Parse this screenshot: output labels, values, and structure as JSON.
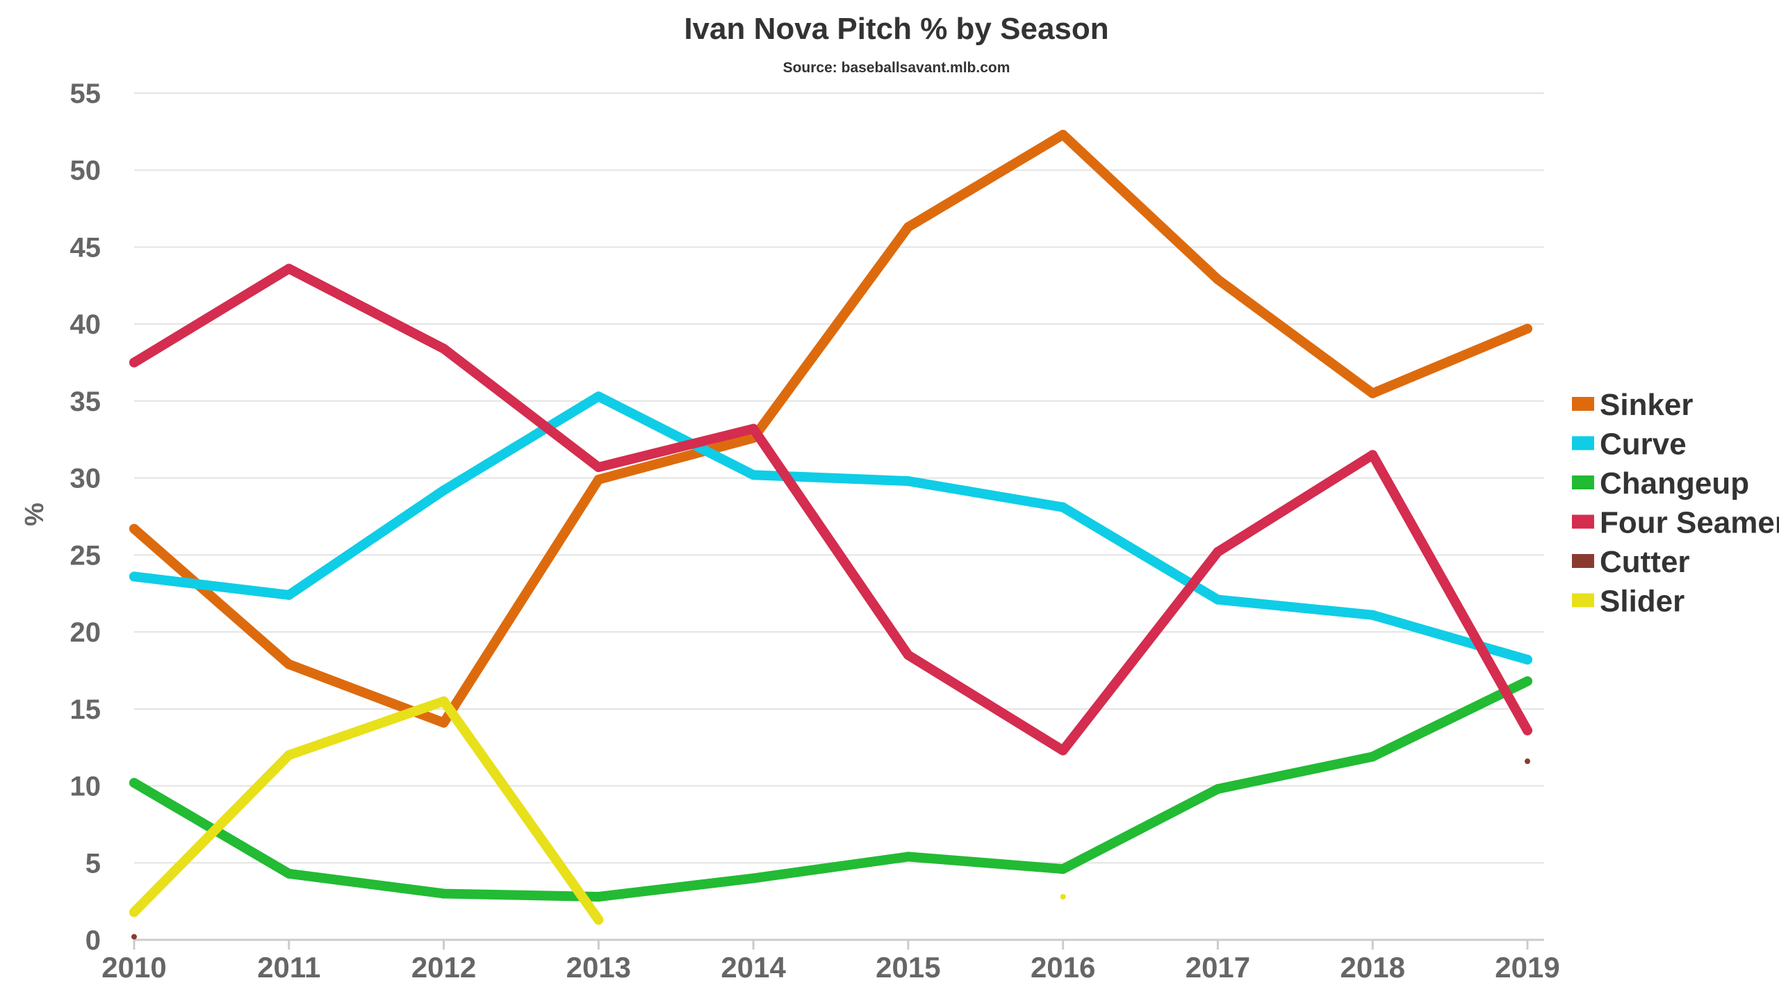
{
  "chart_data": {
    "type": "line",
    "title": "Ivan Nova Pitch % by Season",
    "subtitle": "Source: baseballsavant.mlb.com",
    "xlabel": "",
    "ylabel": "%",
    "ylim": [
      0,
      55
    ],
    "yticks": [
      "0",
      "5",
      "10",
      "15",
      "20",
      "25",
      "30",
      "35",
      "40",
      "45",
      "50",
      "55"
    ],
    "x": [
      "2010",
      "2011",
      "2012",
      "2013",
      "2014",
      "2015",
      "2016",
      "2017",
      "2018",
      "2019"
    ],
    "grid": true,
    "legend_position": "right",
    "series": [
      {
        "name": "Sinker",
        "color": "#dd6b0e",
        "values": [
          26.7,
          17.9,
          14.1,
          29.9,
          32.6,
          46.3,
          52.3,
          42.9,
          35.5,
          39.7
        ]
      },
      {
        "name": "Curve",
        "color": "#0fcde6",
        "values": [
          23.6,
          22.4,
          29.2,
          35.3,
          30.2,
          29.8,
          28.1,
          22.1,
          21.1,
          18.2
        ]
      },
      {
        "name": "Changeup",
        "color": "#22bb33",
        "values": [
          10.2,
          4.3,
          3.0,
          2.8,
          4.0,
          5.4,
          4.6,
          9.8,
          11.9,
          16.8
        ]
      },
      {
        "name": "Four Seamer",
        "color": "#d42d4f",
        "values": [
          37.5,
          43.6,
          38.4,
          30.7,
          33.2,
          18.5,
          12.3,
          25.2,
          31.5,
          13.6
        ]
      },
      {
        "name": "Cutter",
        "color": "#8b3a30",
        "values": [
          0.2,
          null,
          null,
          null,
          null,
          null,
          null,
          null,
          null,
          11.6
        ]
      },
      {
        "name": "Slider",
        "color": "#e8e01a",
        "values": [
          1.8,
          12.0,
          15.5,
          1.3,
          null,
          null,
          2.8,
          null,
          null,
          null
        ]
      }
    ]
  }
}
